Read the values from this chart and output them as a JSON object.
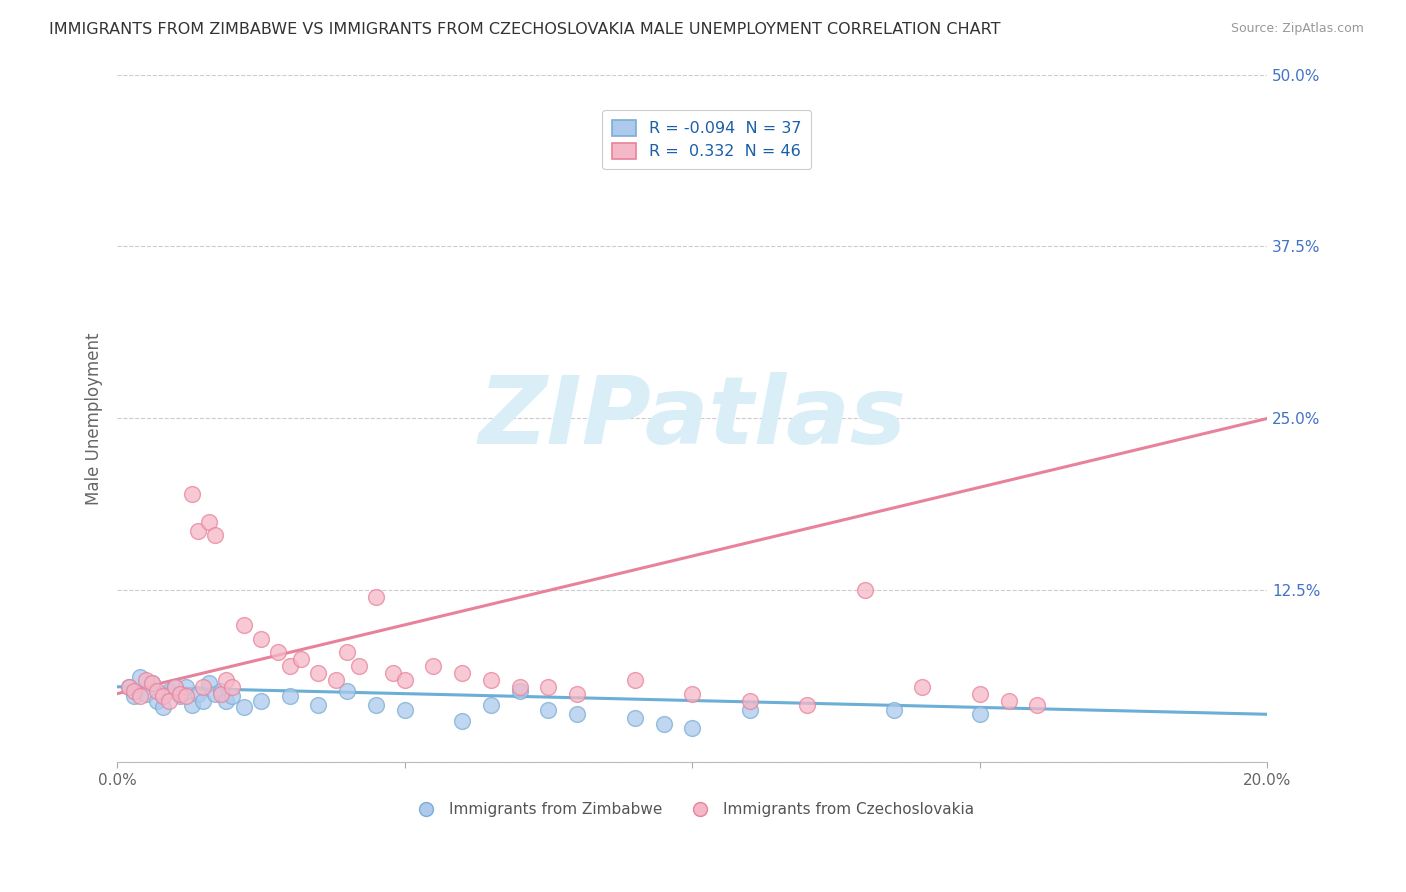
{
  "title": "IMMIGRANTS FROM ZIMBABWE VS IMMIGRANTS FROM CZECHOSLOVAKIA MALE UNEMPLOYMENT CORRELATION CHART",
  "source": "Source: ZipAtlas.com",
  "ylabel": "Male Unemployment",
  "xlim": [
    0.0,
    0.2
  ],
  "ylim": [
    0.0,
    0.5
  ],
  "xticks": [
    0.0,
    0.05,
    0.1,
    0.15,
    0.2
  ],
  "xticklabels": [
    "0.0%",
    "",
    "",
    "",
    "20.0%"
  ],
  "yticks": [
    0.0,
    0.125,
    0.25,
    0.375,
    0.5
  ],
  "yticklabels": [
    "",
    "12.5%",
    "25.0%",
    "37.5%",
    "50.0%"
  ],
  "color_zim": "#adc9ec",
  "color_czk": "#f5b8c8",
  "edge_zim": "#7aaed4",
  "edge_czk": "#e8829a",
  "line_zim": "#6baed6",
  "line_czk": "#e8829a",
  "watermark_text": "ZIPatlas",
  "watermark_color": "#daeef8",
  "legend_label1": "R = -0.094  N = 37",
  "legend_label2": "R =  0.332  N = 46",
  "legend_color": "#1a5fa8",
  "zimbabwe_x": [
    0.002,
    0.003,
    0.004,
    0.005,
    0.006,
    0.007,
    0.008,
    0.009,
    0.01,
    0.011,
    0.012,
    0.013,
    0.014,
    0.015,
    0.016,
    0.017,
    0.018,
    0.019,
    0.02,
    0.022,
    0.025,
    0.03,
    0.035,
    0.04,
    0.045,
    0.05,
    0.06,
    0.065,
    0.07,
    0.075,
    0.08,
    0.09,
    0.095,
    0.1,
    0.11,
    0.135,
    0.15
  ],
  "zimbabwe_y": [
    0.055,
    0.048,
    0.062,
    0.05,
    0.058,
    0.045,
    0.04,
    0.052,
    0.055,
    0.048,
    0.055,
    0.042,
    0.05,
    0.045,
    0.058,
    0.05,
    0.052,
    0.045,
    0.048,
    0.04,
    0.045,
    0.048,
    0.042,
    0.052,
    0.042,
    0.038,
    0.03,
    0.042,
    0.052,
    0.038,
    0.035,
    0.032,
    0.028,
    0.025,
    0.038,
    0.038,
    0.035
  ],
  "czechoslovakia_x": [
    0.002,
    0.003,
    0.004,
    0.005,
    0.006,
    0.007,
    0.008,
    0.009,
    0.01,
    0.011,
    0.012,
    0.013,
    0.014,
    0.015,
    0.016,
    0.017,
    0.018,
    0.019,
    0.02,
    0.022,
    0.025,
    0.028,
    0.03,
    0.032,
    0.035,
    0.038,
    0.04,
    0.042,
    0.045,
    0.048,
    0.05,
    0.055,
    0.06,
    0.065,
    0.07,
    0.075,
    0.08,
    0.09,
    0.1,
    0.11,
    0.12,
    0.13,
    0.14,
    0.15,
    0.155,
    0.16
  ],
  "czechoslovakia_y": [
    0.055,
    0.052,
    0.048,
    0.06,
    0.058,
    0.052,
    0.048,
    0.045,
    0.055,
    0.05,
    0.048,
    0.195,
    0.168,
    0.055,
    0.175,
    0.165,
    0.05,
    0.06,
    0.055,
    0.1,
    0.09,
    0.08,
    0.07,
    0.075,
    0.065,
    0.06,
    0.08,
    0.07,
    0.12,
    0.065,
    0.06,
    0.07,
    0.065,
    0.06,
    0.055,
    0.055,
    0.05,
    0.06,
    0.05,
    0.045,
    0.042,
    0.125,
    0.055,
    0.05,
    0.045,
    0.042
  ],
  "zim_line_x": [
    0.0,
    0.2
  ],
  "zim_line_y": [
    0.055,
    0.035
  ],
  "czk_line_x": [
    0.0,
    0.2
  ],
  "czk_line_y": [
    0.05,
    0.25
  ]
}
